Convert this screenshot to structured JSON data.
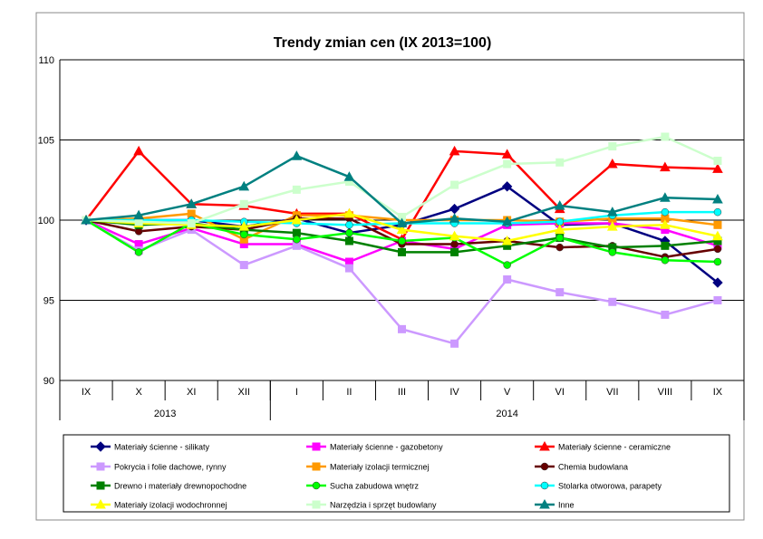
{
  "chart_data": {
    "type": "line",
    "title": "Trendy zmian cen (IX 2013=100)",
    "xlabel": "",
    "ylabel": "",
    "categories": [
      "IX",
      "X",
      "XI",
      "XII",
      "I",
      "II",
      "III",
      "IV",
      "V",
      "VI",
      "VII",
      "VIII",
      "IX"
    ],
    "year_groups": [
      {
        "label": "2013",
        "count": 4
      },
      {
        "label": "2014",
        "count": 9
      }
    ],
    "ylim": [
      90,
      110
    ],
    "yticks": [
      90,
      95,
      100,
      105,
      110
    ],
    "grid": true,
    "legend_position": "bottom",
    "series": [
      {
        "name": "Materiały ścienne - silikaty",
        "color": "#000080",
        "marker": "diamond",
        "values": [
          100,
          100,
          100,
          99.6,
          100.1,
          99.2,
          99.7,
          100.7,
          102.1,
          99.7,
          99.8,
          98.7,
          96.1
        ]
      },
      {
        "name": "Materiały ścienne - gazobetony",
        "color": "#FF00FF",
        "marker": "square",
        "values": [
          100,
          98.5,
          99.5,
          98.5,
          98.5,
          97.4,
          98.7,
          98.2,
          99.7,
          99.8,
          99.8,
          99.4,
          98.4
        ]
      },
      {
        "name": "Materiały ścienne - ceramiczne",
        "color": "#FF0000",
        "marker": "triangle",
        "values": [
          100,
          104.3,
          101.0,
          100.9,
          100.4,
          100.4,
          98.8,
          104.3,
          104.1,
          100.7,
          103.5,
          103.3,
          103.2
        ]
      },
      {
        "name": "Pokrycia i folie dachowe, rynny",
        "color": "#CC99FF",
        "marker": "square",
        "values": [
          100,
          98.1,
          99.4,
          97.2,
          98.4,
          97.0,
          93.2,
          92.3,
          96.3,
          95.5,
          94.9,
          94.1,
          95.0
        ]
      },
      {
        "name": "Materiały izolacji termicznej",
        "color": "#FF9900",
        "marker": "square",
        "values": [
          100,
          100.1,
          100.4,
          98.8,
          100.3,
          100.3,
          100.0,
          100.0,
          100.0,
          99.9,
          100.1,
          100.1,
          99.7
        ]
      },
      {
        "name": "Chemia budowlana",
        "color": "#660000",
        "marker": "circle",
        "values": [
          100,
          99.3,
          99.6,
          99.4,
          100.1,
          100.1,
          98.5,
          98.5,
          98.7,
          98.3,
          98.4,
          97.7,
          98.2
        ]
      },
      {
        "name": "Drewno i materiały drewnopochodne",
        "color": "#008000",
        "marker": "square",
        "values": [
          100,
          99.7,
          99.8,
          99.4,
          99.2,
          98.7,
          98.0,
          98.0,
          98.4,
          98.9,
          98.3,
          98.4,
          98.7
        ]
      },
      {
        "name": "Sucha zabudowa wnętrz",
        "color": "#00FF00",
        "marker": "circle",
        "values": [
          100,
          98.0,
          99.8,
          99.1,
          98.8,
          99.2,
          98.7,
          98.9,
          97.2,
          98.9,
          98.0,
          97.5,
          97.4
        ]
      },
      {
        "name": "Stolarka otworowa, parapety",
        "color": "#00FFFF",
        "marker": "circle",
        "values": [
          100,
          100.0,
          100.0,
          99.9,
          99.8,
          99.7,
          99.8,
          99.8,
          99.8,
          99.9,
          100.3,
          100.5,
          100.5
        ]
      },
      {
        "name": "Materiały izolacji wodochronnej",
        "color": "#FFFF00",
        "marker": "triangle",
        "values": [
          100,
          99.8,
          99.7,
          99.6,
          100.0,
          100.4,
          99.4,
          99.0,
          98.7,
          99.4,
          99.6,
          99.7,
          99.0
        ]
      },
      {
        "name": "Narzędzia i sprzęt budowlany",
        "color": "#CCFFCC",
        "marker": "square",
        "values": [
          100,
          99.9,
          99.8,
          101.0,
          101.9,
          102.4,
          100.2,
          102.2,
          103.5,
          103.6,
          104.6,
          105.2,
          103.7
        ]
      },
      {
        "name": "Inne",
        "color": "#008080",
        "marker": "triangle",
        "values": [
          100,
          100.3,
          101.0,
          102.1,
          104.0,
          102.7,
          99.8,
          100.1,
          99.9,
          100.9,
          100.5,
          101.4,
          101.3
        ]
      }
    ]
  }
}
